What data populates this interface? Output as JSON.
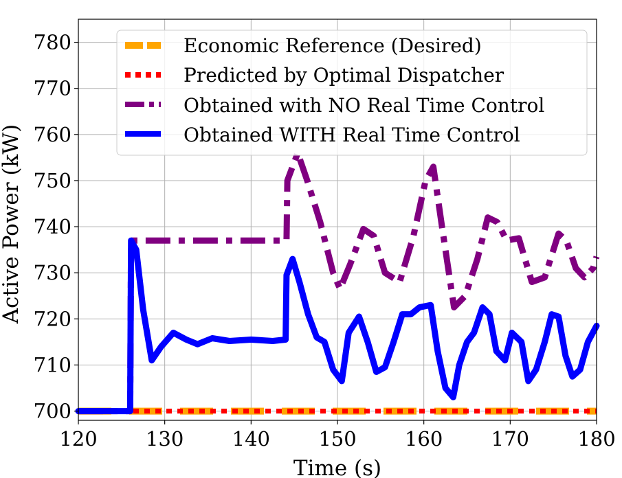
{
  "chart_data": {
    "type": "line",
    "title": "",
    "xlabel": "Time (s)",
    "ylabel": "Active Power (kW)",
    "xlim": [
      120,
      180
    ],
    "ylim": [
      698,
      785
    ],
    "xticks": [
      120,
      130,
      140,
      150,
      160,
      170,
      180
    ],
    "yticks": [
      700,
      710,
      720,
      730,
      740,
      750,
      760,
      770,
      780
    ],
    "grid": true,
    "legend_position": "top-center",
    "series": [
      {
        "name": "Economic Reference (Desired)",
        "color": "#FFA500",
        "style": "dashed",
        "x": [
          120,
          180
        ],
        "y": [
          700,
          700
        ]
      },
      {
        "name": "Predicted by Optimal Dispatcher",
        "color": "#FF0000",
        "style": "dotted",
        "x": [
          120,
          180
        ],
        "y": [
          700,
          700
        ]
      },
      {
        "name": "Obtained with NO Real Time Control",
        "color": "#800080",
        "style": "dashdot",
        "x": [
          120,
          126,
          126.1,
          144.1,
          144.2,
          145.4,
          146.5,
          148,
          149.5,
          150.3,
          151.5,
          153,
          154.2,
          155.5,
          157.2,
          158.8,
          160.2,
          161.1,
          162.1,
          163.5,
          164.8,
          166.2,
          167.4,
          168.5,
          169.6,
          171,
          172.5,
          174,
          175.6,
          176.5,
          177.6,
          178.6,
          179.6,
          180
        ],
        "y": [
          700,
          700,
          737,
          737,
          750,
          756,
          750,
          741,
          730,
          726.5,
          732,
          739.5,
          738,
          730,
          728,
          738,
          750,
          753,
          740,
          722.5,
          725,
          733,
          742,
          741,
          737,
          737.5,
          728,
          729,
          738.5,
          737,
          731,
          729,
          731,
          733.5
        ]
      },
      {
        "name": "Obtained WITH Real Time Control",
        "color": "#0000FF",
        "style": "solid",
        "x": [
          120,
          126,
          126.1,
          126.7,
          127.5,
          128.5,
          129.6,
          131,
          132.5,
          133.8,
          135.5,
          137.5,
          140,
          142.5,
          144,
          144.1,
          144.8,
          145.6,
          146.6,
          147.6,
          148.5,
          149.5,
          150.5,
          151.3,
          152.5,
          153.5,
          154.5,
          155.5,
          156.5,
          157.5,
          158.5,
          159.5,
          160.8,
          161.6,
          162.5,
          163.4,
          164.1,
          165,
          165.8,
          166.8,
          167.6,
          168.4,
          169.4,
          170.2,
          171.3,
          172.1,
          173,
          174,
          174.8,
          175.6,
          176.4,
          177.2,
          178.1,
          179,
          180
        ],
        "y": [
          700,
          700,
          737,
          735,
          722,
          711,
          714,
          717,
          715.5,
          714.5,
          715.8,
          715.2,
          715.5,
          715.2,
          715.5,
          729.5,
          733,
          728,
          721,
          716,
          715,
          709,
          706.5,
          717,
          720.5,
          715,
          708.5,
          709.5,
          715,
          721,
          721,
          722.5,
          723,
          713,
          705,
          703,
          710,
          715,
          717,
          722.5,
          721,
          713,
          711,
          717,
          715,
          706.5,
          709,
          715,
          721,
          720.5,
          712,
          707.5,
          709,
          715,
          718.5
        ]
      }
    ]
  }
}
